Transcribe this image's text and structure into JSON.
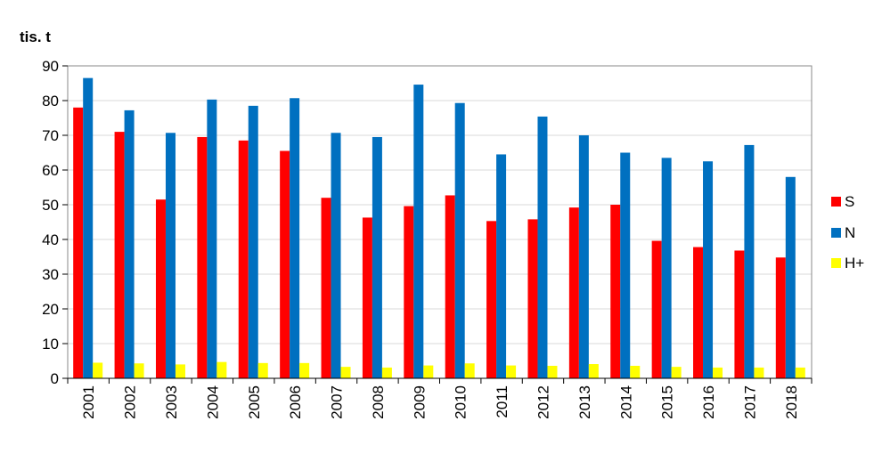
{
  "chart_data": {
    "type": "bar",
    "title": "",
    "xlabel": "",
    "ylabel": "tis. t",
    "ylim": [
      0,
      90
    ],
    "yticks": [
      0,
      10,
      20,
      30,
      40,
      50,
      60,
      70,
      80,
      90
    ],
    "grid": true,
    "legend_position": "right",
    "categories": [
      "2001",
      "2002",
      "2003",
      "2004",
      "2005",
      "2006",
      "2007",
      "2008",
      "2009",
      "2010",
      "2011",
      "2012",
      "2013",
      "2014",
      "2015",
      "2016",
      "2017",
      "2018"
    ],
    "series": [
      {
        "name": "S",
        "color": "#ff0000",
        "values": [
          78,
          71,
          51.5,
          69.5,
          68.5,
          65.5,
          52,
          46.3,
          49.6,
          52.7,
          45.3,
          45.8,
          49.2,
          50,
          39.6,
          37.8,
          36.8,
          34.8
        ]
      },
      {
        "name": "N",
        "color": "#0070c0",
        "values": [
          86.5,
          77.2,
          70.7,
          80.3,
          78.5,
          80.7,
          70.7,
          69.5,
          84.6,
          79.3,
          64.5,
          75.4,
          70,
          65,
          63.5,
          62.5,
          67.2,
          58
        ]
      },
      {
        "name": "H+",
        "color": "#ffff00",
        "values": [
          4.5,
          4.3,
          4,
          4.7,
          4.4,
          4.4,
          3.3,
          3.1,
          3.7,
          4.3,
          3.7,
          3.6,
          4.1,
          3.6,
          3.3,
          3.1,
          3.1,
          3.1
        ]
      }
    ]
  }
}
